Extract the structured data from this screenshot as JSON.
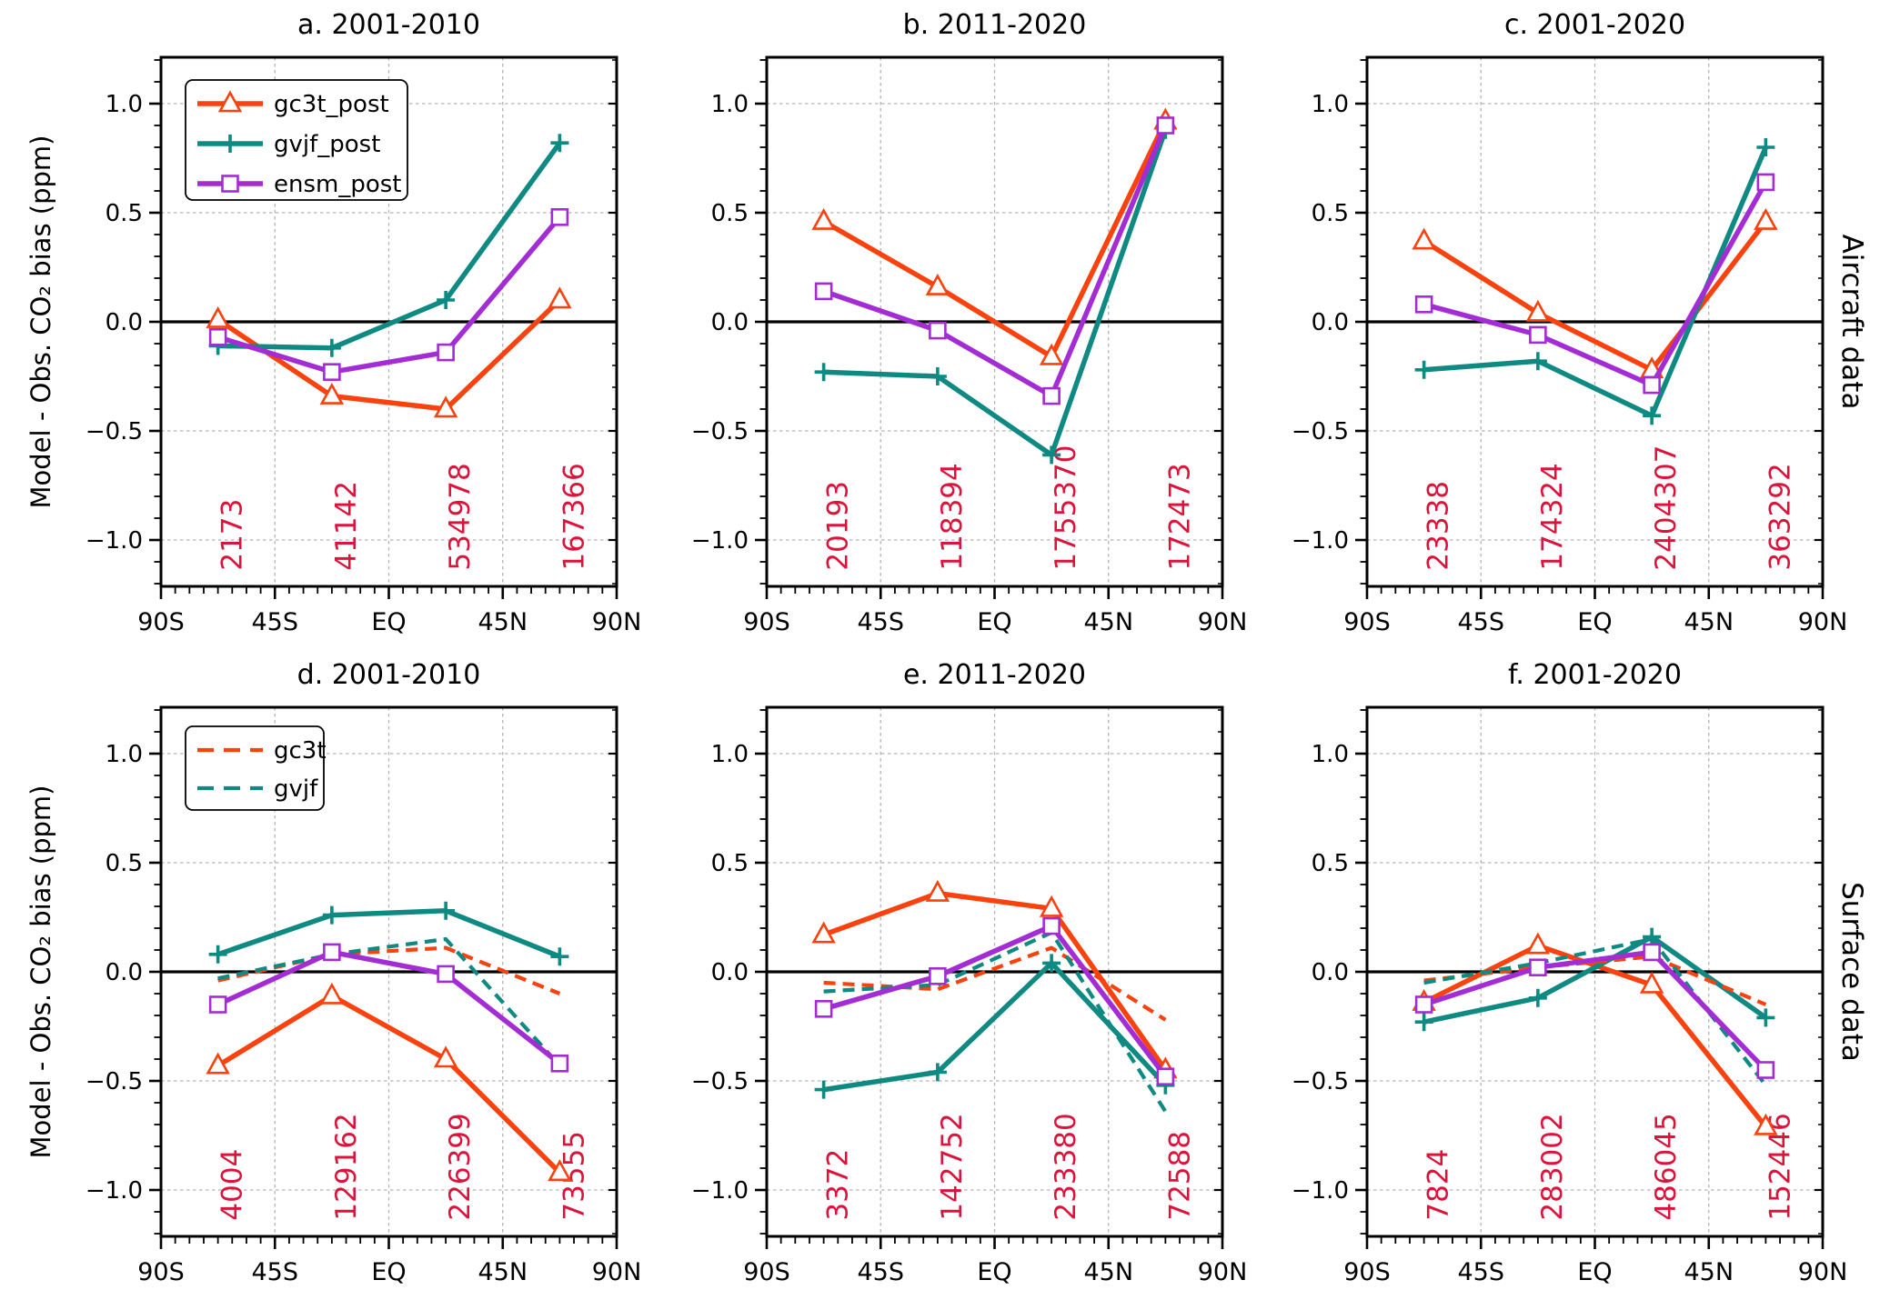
{
  "figure": {
    "ylabel": "Model - Obs. CO₂ bias (ppm)",
    "row_labels": [
      "Aircraft data",
      "Surface data"
    ],
    "colors": {
      "gc3t": "#F9420D",
      "gvjf": "#0E8A82",
      "ensm": "#A32CD4",
      "counts": "#DC143C",
      "grid": "#b3b3b3",
      "axis": "#000000",
      "background": "#ffffff"
    }
  },
  "chart_data": [
    {
      "id": "a",
      "type": "line",
      "title": "a. 2001-2010",
      "row": "Aircraft data",
      "x_band_centers_deg": [
        -67.5,
        -22.5,
        22.5,
        67.5
      ],
      "xlim_deg": [
        -90,
        90
      ],
      "ylim": [
        -1.21,
        1.21
      ],
      "xtick_labels": [
        "90S",
        "45S",
        "EQ",
        "45N",
        "90N"
      ],
      "xtick_positions_deg": [
        -90,
        -45,
        0,
        45,
        90
      ],
      "ytick_labels": [
        "1.0",
        "0.5",
        "0.0",
        "−0.5",
        "−1.0"
      ],
      "ytick_values": [
        1.0,
        0.5,
        0.0,
        -0.5,
        -1.0
      ],
      "grid": true,
      "zero_line": true,
      "obs_counts": [
        "2173",
        "41142",
        "534978",
        "167366"
      ],
      "legend": {
        "visible": true,
        "position": "upper-left",
        "entries": [
          "gc3t_post",
          "gvjf_post",
          "ensm_post"
        ]
      },
      "series": [
        {
          "name": "gc3t_post",
          "color_key": "gc3t",
          "linestyle": "solid",
          "marker": "triangle",
          "values": [
            0.01,
            -0.34,
            -0.4,
            0.1
          ]
        },
        {
          "name": "gvjf_post",
          "color_key": "gvjf",
          "linestyle": "solid",
          "marker": "plus",
          "values": [
            -0.11,
            -0.12,
            0.1,
            0.82
          ]
        },
        {
          "name": "ensm_post",
          "color_key": "ensm",
          "linestyle": "solid",
          "marker": "square",
          "values": [
            -0.07,
            -0.23,
            -0.14,
            0.48
          ]
        }
      ]
    },
    {
      "id": "b",
      "type": "line",
      "title": "b. 2011-2020",
      "row": "Aircraft data",
      "x_band_centers_deg": [
        -67.5,
        -22.5,
        22.5,
        67.5
      ],
      "xlim_deg": [
        -90,
        90
      ],
      "ylim": [
        -1.21,
        1.21
      ],
      "xtick_labels": [
        "90S",
        "45S",
        "EQ",
        "45N",
        "90N"
      ],
      "xtick_positions_deg": [
        -90,
        -45,
        0,
        45,
        90
      ],
      "ytick_labels": [
        "1.0",
        "0.5",
        "0.0",
        "−0.5",
        "−1.0"
      ],
      "ytick_values": [
        1.0,
        0.5,
        0.0,
        -0.5,
        -1.0
      ],
      "grid": true,
      "zero_line": true,
      "obs_counts": [
        "20193",
        "118394",
        "1755370",
        "172473"
      ],
      "legend": {
        "visible": false,
        "entries": []
      },
      "series": [
        {
          "name": "gc3t_post",
          "color_key": "gc3t",
          "linestyle": "solid",
          "marker": "triangle",
          "values": [
            0.46,
            0.16,
            -0.16,
            0.92
          ]
        },
        {
          "name": "gvjf_post",
          "color_key": "gvjf",
          "linestyle": "solid",
          "marker": "plus",
          "values": [
            -0.23,
            -0.25,
            -0.61,
            0.88
          ]
        },
        {
          "name": "ensm_post",
          "color_key": "ensm",
          "linestyle": "solid",
          "marker": "square",
          "values": [
            0.14,
            -0.04,
            -0.34,
            0.9
          ]
        }
      ]
    },
    {
      "id": "c",
      "type": "line",
      "title": "c. 2001-2020",
      "row": "Aircraft data",
      "x_band_centers_deg": [
        -67.5,
        -22.5,
        22.5,
        67.5
      ],
      "xlim_deg": [
        -90,
        90
      ],
      "ylim": [
        -1.21,
        1.21
      ],
      "xtick_labels": [
        "90S",
        "45S",
        "EQ",
        "45N",
        "90N"
      ],
      "xtick_positions_deg": [
        -90,
        -45,
        0,
        45,
        90
      ],
      "ytick_labels": [
        "1.0",
        "0.5",
        "0.0",
        "−0.5",
        "−1.0"
      ],
      "ytick_values": [
        1.0,
        0.5,
        0.0,
        -0.5,
        -1.0
      ],
      "grid": true,
      "zero_line": true,
      "obs_counts": [
        "23338",
        "174324",
        "2404307",
        "363292"
      ],
      "legend": {
        "visible": false,
        "entries": []
      },
      "series": [
        {
          "name": "gc3t_post",
          "color_key": "gc3t",
          "linestyle": "solid",
          "marker": "triangle",
          "values": [
            0.37,
            0.04,
            -0.22,
            0.46
          ]
        },
        {
          "name": "gvjf_post",
          "color_key": "gvjf",
          "linestyle": "solid",
          "marker": "plus",
          "values": [
            -0.22,
            -0.18,
            -0.43,
            0.8
          ]
        },
        {
          "name": "ensm_post",
          "color_key": "ensm",
          "linestyle": "solid",
          "marker": "square",
          "values": [
            0.08,
            -0.06,
            -0.29,
            0.64
          ]
        }
      ]
    },
    {
      "id": "d",
      "type": "line",
      "title": "d. 2001-2010",
      "row": "Surface data",
      "x_band_centers_deg": [
        -67.5,
        -22.5,
        22.5,
        67.5
      ],
      "xlim_deg": [
        -90,
        90
      ],
      "ylim": [
        -1.21,
        1.21
      ],
      "xtick_labels": [
        "90S",
        "45S",
        "EQ",
        "45N",
        "90N"
      ],
      "xtick_positions_deg": [
        -90,
        -45,
        0,
        45,
        90
      ],
      "ytick_labels": [
        "1.0",
        "0.5",
        "0.0",
        "−0.5",
        "−1.0"
      ],
      "ytick_values": [
        1.0,
        0.5,
        0.0,
        -0.5,
        -1.0
      ],
      "grid": true,
      "zero_line": true,
      "obs_counts": [
        "4004",
        "129162",
        "226399",
        "73555"
      ],
      "legend": {
        "visible": true,
        "position": "upper-left",
        "entries": [
          "gc3t",
          "gvjf"
        ]
      },
      "series": [
        {
          "name": "gc3t_post",
          "color_key": "gc3t",
          "linestyle": "solid",
          "marker": "triangle",
          "values": [
            -0.43,
            -0.11,
            -0.4,
            -0.92
          ]
        },
        {
          "name": "gvjf_post",
          "color_key": "gvjf",
          "linestyle": "solid",
          "marker": "plus",
          "values": [
            0.08,
            0.26,
            0.28,
            0.07
          ]
        },
        {
          "name": "gc3t",
          "color_key": "gc3t",
          "linestyle": "dashed",
          "marker": "none",
          "values": [
            -0.04,
            0.08,
            0.11,
            -0.1
          ]
        },
        {
          "name": "gvjf",
          "color_key": "gvjf",
          "linestyle": "dashed",
          "marker": "none",
          "values": [
            -0.03,
            0.08,
            0.15,
            -0.43
          ]
        },
        {
          "name": "ensm_post",
          "color_key": "ensm",
          "linestyle": "solid",
          "marker": "square",
          "values": [
            -0.15,
            0.09,
            -0.01,
            -0.42
          ]
        }
      ]
    },
    {
      "id": "e",
      "type": "line",
      "title": "e. 2011-2020",
      "row": "Surface data",
      "x_band_centers_deg": [
        -67.5,
        -22.5,
        22.5,
        67.5
      ],
      "xlim_deg": [
        -90,
        90
      ],
      "ylim": [
        -1.21,
        1.21
      ],
      "xtick_labels": [
        "90S",
        "45S",
        "EQ",
        "45N",
        "90N"
      ],
      "xtick_positions_deg": [
        -90,
        -45,
        0,
        45,
        90
      ],
      "ytick_labels": [
        "1.0",
        "0.5",
        "0.0",
        "−0.5",
        "−1.0"
      ],
      "ytick_values": [
        1.0,
        0.5,
        0.0,
        -0.5,
        -1.0
      ],
      "grid": true,
      "zero_line": true,
      "obs_counts": [
        "3372",
        "142752",
        "233380",
        "72588"
      ],
      "legend": {
        "visible": false,
        "entries": []
      },
      "series": [
        {
          "name": "gc3t_post",
          "color_key": "gc3t",
          "linestyle": "solid",
          "marker": "triangle",
          "values": [
            0.17,
            0.36,
            0.29,
            -0.45
          ]
        },
        {
          "name": "gvjf_post",
          "color_key": "gvjf",
          "linestyle": "solid",
          "marker": "plus",
          "values": [
            -0.54,
            -0.46,
            0.04,
            -0.52
          ]
        },
        {
          "name": "gc3t",
          "color_key": "gc3t",
          "linestyle": "dashed",
          "marker": "none",
          "values": [
            -0.05,
            -0.08,
            0.11,
            -0.22
          ]
        },
        {
          "name": "gvjf",
          "color_key": "gvjf",
          "linestyle": "dashed",
          "marker": "none",
          "values": [
            -0.09,
            -0.06,
            0.18,
            -0.64
          ]
        },
        {
          "name": "ensm_post",
          "color_key": "ensm",
          "linestyle": "solid",
          "marker": "square",
          "values": [
            -0.17,
            -0.02,
            0.21,
            -0.48
          ]
        }
      ]
    },
    {
      "id": "f",
      "type": "line",
      "title": "f. 2001-2020",
      "row": "Surface data",
      "x_band_centers_deg": [
        -67.5,
        -22.5,
        22.5,
        67.5
      ],
      "xlim_deg": [
        -90,
        90
      ],
      "ylim": [
        -1.21,
        1.21
      ],
      "xtick_labels": [
        "90S",
        "45S",
        "EQ",
        "45N",
        "90N"
      ],
      "xtick_positions_deg": [
        -90,
        -45,
        0,
        45,
        90
      ],
      "ytick_labels": [
        "1.0",
        "0.5",
        "0.0",
        "−0.5",
        "−1.0"
      ],
      "ytick_values": [
        1.0,
        0.5,
        0.0,
        -0.5,
        -1.0
      ],
      "grid": true,
      "zero_line": true,
      "obs_counts": [
        "7824",
        "283002",
        "486045",
        "152446"
      ],
      "legend": {
        "visible": false,
        "entries": []
      },
      "series": [
        {
          "name": "gc3t_post",
          "color_key": "gc3t",
          "linestyle": "solid",
          "marker": "triangle",
          "values": [
            -0.14,
            0.12,
            -0.06,
            -0.71
          ]
        },
        {
          "name": "gvjf_post",
          "color_key": "gvjf",
          "linestyle": "solid",
          "marker": "plus",
          "values": [
            -0.23,
            -0.12,
            0.16,
            -0.21
          ]
        },
        {
          "name": "gc3t",
          "color_key": "gc3t",
          "linestyle": "dashed",
          "marker": "none",
          "values": [
            -0.04,
            0.02,
            0.07,
            -0.15
          ]
        },
        {
          "name": "gvjf",
          "color_key": "gvjf",
          "linestyle": "dashed",
          "marker": "none",
          "values": [
            -0.05,
            0.04,
            0.15,
            -0.52
          ]
        },
        {
          "name": "ensm_post",
          "color_key": "ensm",
          "linestyle": "solid",
          "marker": "square",
          "values": [
            -0.15,
            0.02,
            0.09,
            -0.45
          ]
        }
      ]
    }
  ]
}
